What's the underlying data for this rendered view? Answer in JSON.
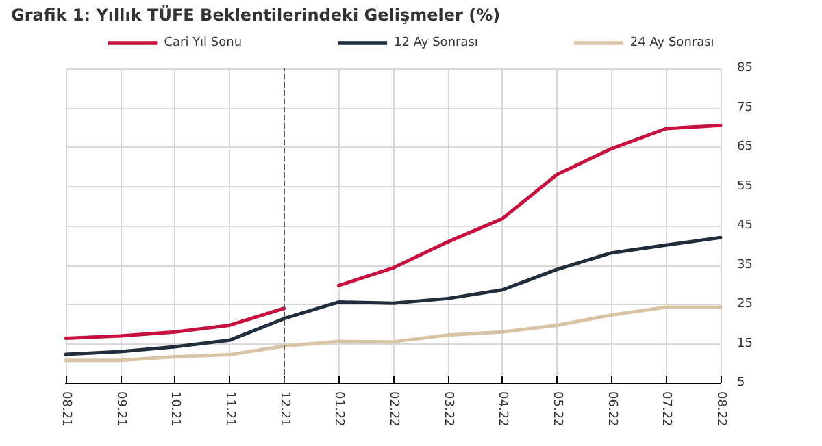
{
  "chart_data": {
    "type": "line",
    "title": "Grafik 1: Yıllık TÜFE Beklentilerindeki Gelişmeler (%)",
    "categories": [
      "08.21",
      "09.21",
      "10.21",
      "11.21",
      "12.21",
      "01.22",
      "02.22",
      "03.22",
      "04.22",
      "05.22",
      "06.22",
      "07.22",
      "08.22"
    ],
    "series": [
      {
        "name": "Cari Yıl Sonu",
        "color": "#c8103e",
        "values": [
          16.4,
          17.0,
          18.0,
          19.7,
          24.0,
          null,
          null,
          null,
          null,
          null,
          null,
          null,
          null
        ]
      },
      {
        "color": "#c8103e",
        "values": [
          null,
          null,
          null,
          null,
          null,
          29.8,
          34.3,
          40.9,
          46.8,
          58.0,
          64.6,
          69.7,
          70.5
        ]
      },
      {
        "name": "12 Ay Sonrası",
        "color": "#1f2d3d",
        "values": [
          12.3,
          13.0,
          14.2,
          15.9,
          21.4,
          25.6,
          25.3,
          26.5,
          28.7,
          33.9,
          38.1,
          40.1,
          42.0
        ]
      },
      {
        "name": "24 Ay Sonrası",
        "color": "#d8c3a5",
        "values": [
          10.8,
          10.8,
          11.7,
          12.2,
          14.4,
          15.6,
          15.5,
          17.2,
          18.0,
          19.7,
          22.3,
          24.3,
          24.3
        ]
      }
    ],
    "ylim": [
      5,
      85
    ],
    "yticks": [
      5,
      15,
      25,
      35,
      45,
      55,
      65,
      75,
      85
    ],
    "grid": true,
    "legend": "top",
    "marker": "none",
    "line_style": "solid",
    "ref_lines": [
      {
        "axis": "x",
        "value": "12.21",
        "color": "#555555",
        "line_style": "dashed"
      }
    ]
  }
}
